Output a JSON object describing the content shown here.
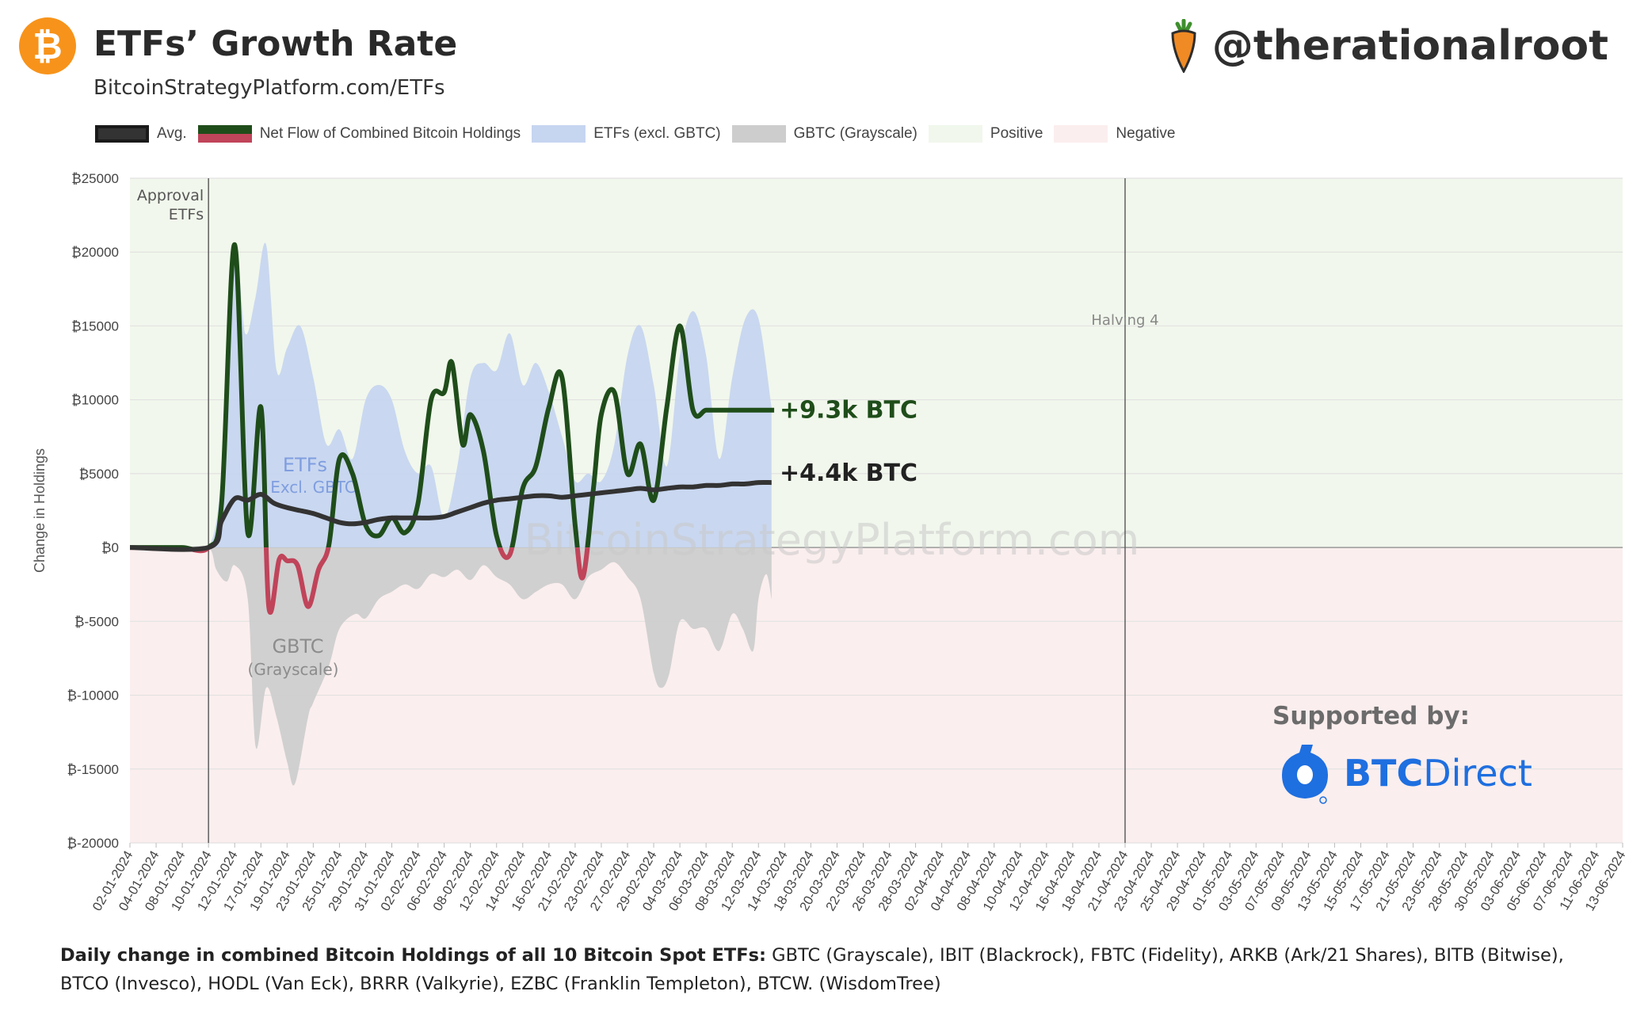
{
  "header": {
    "logo_glyph": "₿",
    "title": "ETFs’ Growth Rate",
    "subtitle": "BitcoinStrategyPlatform.com/ETFs",
    "handle": "@therationalroot",
    "handle_icon": "carrot-icon"
  },
  "legend": [
    {
      "label": "Avg.",
      "color": "#333333"
    },
    {
      "label": "Net Flow of Combined Bitcoin Holdings",
      "color": "#1f4d1a",
      "color2": "#c0445a"
    },
    {
      "label": "ETFs (excl. GBTC)",
      "color": "#c6d5f0"
    },
    {
      "label": "GBTC (Grayscale)",
      "color": "#cdcdcd"
    },
    {
      "label": "Positive",
      "color": "#f1f7ec"
    },
    {
      "label": "Negative",
      "color": "#fbeeee"
    }
  ],
  "watermark": "BitcoinStrategyPlatform.com",
  "sponsor": {
    "label": "Supported by:",
    "brand_bold": "BTC",
    "brand_light": "Direct"
  },
  "footnote": {
    "bold": "Daily change in combined Bitcoin Holdings of all 10 Bitcoin Spot ETFs:",
    "text": " GBTC (Grayscale), IBIT (Blackrock), FBTC (Fidelity), ARKB (Ark/21 Shares), BITB (Bitwise), BTCO (Invesco), HODL (Van Eck), BRRR (Valkyrie), EZBC (Franklin Templeton), BTCW. (WisdomTree)"
  },
  "chart_data": {
    "type": "line",
    "ylabel": "Change in Holdings",
    "ylim": [
      -20000,
      25000
    ],
    "yticks": [
      25000,
      20000,
      15000,
      10000,
      5000,
      0,
      -5000,
      -10000,
      -15000,
      -20000
    ],
    "ytick_labels": [
      "₿25000",
      "₿20000",
      "₿15000",
      "₿10000",
      "₿5000",
      "₿0",
      "₿-5000",
      "₿-10000",
      "₿-15000",
      "₿-20000"
    ],
    "x_tick_labels": [
      "02-01-2024",
      "04-01-2024",
      "08-01-2024",
      "10-01-2024",
      "12-01-2024",
      "17-01-2024",
      "19-01-2024",
      "23-01-2024",
      "25-01-2024",
      "29-01-2024",
      "31-01-2024",
      "02-02-2024",
      "06-02-2024",
      "08-02-2024",
      "12-02-2024",
      "14-02-2024",
      "16-02-2024",
      "21-02-2024",
      "23-02-2024",
      "27-02-2024",
      "29-02-2024",
      "04-03-2024",
      "06-03-2024",
      "08-03-2024",
      "12-03-2024",
      "14-03-2024",
      "18-03-2024",
      "20-03-2024",
      "22-03-2024",
      "26-03-2024",
      "28-03-2024",
      "02-04-2024",
      "04-04-2024",
      "08-04-2024",
      "10-04-2024",
      "12-04-2024",
      "16-04-2024",
      "18-04-2024",
      "21-04-2024",
      "23-04-2024",
      "25-04-2024",
      "29-04-2024",
      "01-05-2024",
      "03-05-2024",
      "07-05-2024",
      "09-05-2024",
      "13-05-2024",
      "15-05-2024",
      "17-05-2024",
      "21-05-2024",
      "23-05-2024",
      "28-05-2024",
      "30-05-2024",
      "03-06-2024",
      "05-06-2024",
      "07-06-2024",
      "11-06-2024",
      "13-06-2024"
    ],
    "vlines": [
      {
        "x": 3,
        "label": [
          "Approval",
          "ETFs"
        ]
      },
      {
        "x": 38,
        "label": [
          "Halving 4"
        ]
      }
    ],
    "series": [
      {
        "name": "ETFs (excl. GBTC)",
        "kind": "area",
        "color": "#c6d5f0",
        "x": [
          0,
          1,
          2,
          3,
          3.5,
          4,
          4.4,
          4.8,
          5.2,
          5.6,
          6,
          6.5,
          7,
          7.5,
          8,
          8.5,
          9,
          9.5,
          10,
          10.5,
          11,
          11.5,
          12,
          12.5,
          13,
          13.5,
          14,
          14.5,
          15,
          15.5,
          16,
          16.5,
          17,
          17.5,
          18,
          18.5,
          19,
          19.5,
          20,
          20.5,
          21,
          21.5,
          22,
          22.5,
          23,
          23.5,
          24,
          24.5
        ],
        "values": [
          0,
          0,
          0,
          0,
          5000,
          20000,
          14500,
          17000,
          20500,
          12000,
          13500,
          15000,
          11500,
          7000,
          8000,
          6000,
          10000,
          11000,
          10000,
          6500,
          5000,
          5500,
          2000,
          5500,
          11500,
          12500,
          12000,
          14500,
          11000,
          12500,
          10500,
          7500,
          4500,
          5000,
          4500,
          7000,
          13000,
          15000,
          11000,
          5500,
          13000,
          16000,
          13000,
          6000,
          11500,
          15500,
          15500,
          9500
        ]
      },
      {
        "name": "GBTC (Grayscale)",
        "kind": "area",
        "color": "#cdcdcd",
        "x": [
          0,
          1,
          2,
          3,
          3.3,
          3.7,
          4,
          4.5,
          4.8,
          5.2,
          5.6,
          6,
          6.3,
          6.8,
          7,
          7.6,
          8,
          8.6,
          9,
          9.5,
          10,
          10.5,
          11,
          11.5,
          12,
          12.5,
          13,
          13.5,
          14,
          14.5,
          15,
          15.5,
          16,
          16.5,
          17,
          17.5,
          18,
          18.5,
          19,
          19.5,
          20,
          20.3,
          20.6,
          21,
          21.5,
          22,
          22.5,
          23,
          23.4,
          23.8,
          24,
          24.3,
          24.5
        ],
        "values": [
          0,
          0,
          0,
          0,
          -1500,
          -2300,
          -1200,
          -3500,
          -13500,
          -9500,
          -11500,
          -14500,
          -16000,
          -11500,
          -10500,
          -8000,
          -5500,
          -4500,
          -4800,
          -3500,
          -3000,
          -2500,
          -2800,
          -1800,
          -2000,
          -1500,
          -2200,
          -1200,
          -2000,
          -2500,
          -3500,
          -3000,
          -2500,
          -2500,
          -3500,
          -2000,
          -1500,
          -1000,
          -2000,
          -3500,
          -8500,
          -9500,
          -8500,
          -5000,
          -5500,
          -5500,
          -7000,
          -4500,
          -5500,
          -7000,
          -3500,
          -1800,
          -3500
        ]
      },
      {
        "name": "Net Flow of Combined Bitcoin Holdings",
        "kind": "line",
        "color": "#1f4d1a",
        "negative_color": "#c0445a",
        "x": [
          0,
          1,
          2,
          3,
          3.5,
          4,
          4.5,
          5,
          5.3,
          5.7,
          6,
          6.4,
          6.8,
          7.2,
          7.6,
          8,
          8.5,
          9,
          9.5,
          10,
          10.5,
          11,
          11.5,
          12,
          12.3,
          12.7,
          13,
          13.5,
          14,
          14.5,
          15,
          15.5,
          16,
          16.5,
          17,
          17.3,
          17.7,
          18,
          18.5,
          19,
          19.5,
          20,
          20.5,
          21,
          21.5,
          22,
          22.5,
          23,
          23.5,
          24,
          24.3,
          24.6
        ],
        "end_label": "+9.3k BTC",
        "values": [
          0,
          0,
          0,
          0,
          3000,
          20500,
          1000,
          9500,
          -4000,
          -800,
          -900,
          -1200,
          -4000,
          -1500,
          200,
          6000,
          5000,
          1500,
          800,
          2000,
          1000,
          3000,
          10000,
          10500,
          12500,
          7000,
          9000,
          6500,
          800,
          -500,
          4000,
          5500,
          9500,
          11500,
          1500,
          -2000,
          4000,
          9000,
          10500,
          5000,
          7000,
          3200,
          9500,
          15000,
          9300,
          9300,
          9300,
          9300,
          9300,
          9300,
          9300,
          9300
        ]
      },
      {
        "name": "Avg.",
        "kind": "line",
        "color": "#333333",
        "end_label": "+4.4k BTC",
        "x": [
          0,
          3,
          3.5,
          4,
          4.5,
          5,
          5.5,
          6,
          6.5,
          7,
          7.5,
          8,
          8.5,
          9,
          9.5,
          10,
          10.5,
          11,
          11.5,
          12,
          12.5,
          13,
          13.5,
          14,
          14.5,
          15,
          15.5,
          16,
          16.5,
          17,
          17.5,
          18,
          18.5,
          19,
          19.5,
          20,
          20.5,
          21,
          21.5,
          22,
          22.5,
          23,
          23.5,
          24,
          24.5
        ],
        "values": [
          0,
          0,
          1800,
          3300,
          3200,
          3600,
          3000,
          2700,
          2500,
          2300,
          2000,
          1700,
          1600,
          1700,
          1900,
          2000,
          2000,
          2000,
          2000,
          2100,
          2400,
          2700,
          3000,
          3200,
          3300,
          3400,
          3500,
          3500,
          3400,
          3500,
          3600,
          3700,
          3800,
          3900,
          4000,
          3900,
          4000,
          4100,
          4100,
          4200,
          4200,
          4300,
          4300,
          4400,
          4400
        ]
      }
    ]
  }
}
